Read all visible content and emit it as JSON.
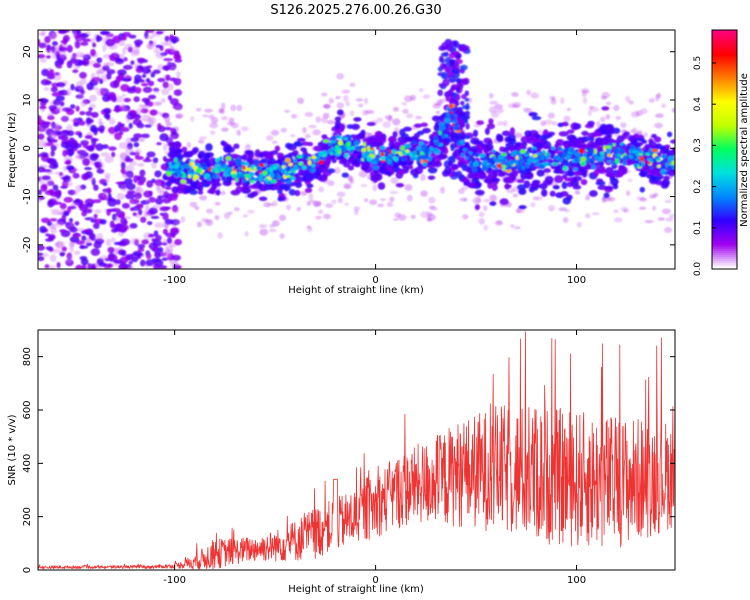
{
  "title": "S126.2025.276.00.26.G30",
  "chart_data": [
    {
      "type": "heatmap",
      "xlabel": "Height of straight line (km)",
      "ylabel": "Frequency (Hz)",
      "xlim": [
        -168,
        149
      ],
      "ylim": [
        -25,
        24.5
      ],
      "xticks": [
        -100,
        0,
        100
      ],
      "yticks": [
        -20,
        -10,
        0,
        10,
        20
      ],
      "colorbar": {
        "label": "Normalized spectral amplitude",
        "range": [
          0,
          0.58
        ],
        "ticks": [
          "0.0",
          "0.1",
          "0.2",
          "0.3",
          "0.4",
          "0.5"
        ],
        "colors": [
          "#ffffff",
          "#a000f0",
          "#3000ff",
          "#0088ff",
          "#00e0e0",
          "#00ff60",
          "#c0ff00",
          "#ffff00",
          "#ff8000",
          "#ff0000",
          "#ff0080"
        ]
      },
      "ridge": {
        "x": [
          -105,
          -90,
          -75,
          -60,
          -45,
          -32,
          -25,
          -18,
          -10,
          0,
          15,
          28,
          33,
          38,
          43,
          48,
          60,
          80,
          100,
          120,
          145
        ],
        "frequency": [
          -4,
          -5,
          -4,
          -5,
          -5,
          -3,
          -1,
          1,
          0,
          -2,
          -1,
          -1,
          3,
          8,
          0,
          -3,
          -3,
          -2,
          -2,
          -1,
          -3
        ]
      }
    },
    {
      "type": "line",
      "xlabel": "Height of straight line (km)",
      "ylabel": "SNR (10 * v/v)",
      "xlim": [
        -168,
        149
      ],
      "ylim": [
        0,
        900
      ],
      "xticks": [
        -100,
        0,
        100
      ],
      "yticks": [
        0,
        200,
        400,
        600,
        800
      ],
      "series": [
        {
          "name": "SNR",
          "color": "#ee3333",
          "envelope_x": [
            -168,
            -110,
            -100,
            -90,
            -80,
            -70,
            -60,
            -50,
            -40,
            -30,
            -20,
            -10,
            0,
            10,
            20,
            30,
            40,
            60,
            80,
            100,
            120,
            140,
            149
          ],
          "envelope_base": [
            10,
            12,
            15,
            30,
            60,
            70,
            80,
            90,
            110,
            140,
            170,
            200,
            240,
            290,
            320,
            330,
            360,
            380,
            360,
            340,
            330,
            350,
            360
          ],
          "envelope_spread": [
            5,
            6,
            8,
            30,
            60,
            50,
            50,
            60,
            80,
            100,
            100,
            110,
            120,
            140,
            150,
            170,
            200,
            240,
            260,
            260,
            250,
            220,
            200
          ]
        }
      ]
    }
  ]
}
